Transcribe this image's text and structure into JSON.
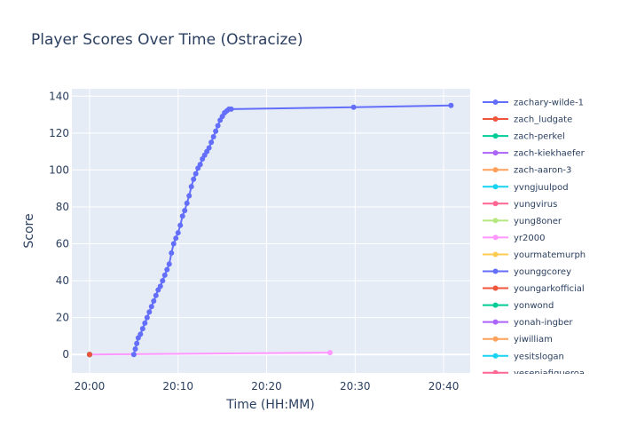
{
  "chart_data": {
    "type": "line",
    "title": "Player Scores Over Time (Ostracize)",
    "xlabel": "Time (HH:MM)",
    "ylabel": "Score",
    "xlim": [
      "19:58",
      "20:43"
    ],
    "ylim": [
      -10,
      144
    ],
    "x_ticks": [
      "20:00",
      "20:10",
      "20:20",
      "20:30",
      "20:40"
    ],
    "y_ticks": [
      0,
      20,
      40,
      60,
      80,
      100,
      120,
      140
    ],
    "grid": true,
    "legend_position": "right",
    "series": [
      {
        "name": "zachary-wilde-1",
        "color": "#636efa",
        "x": [
          "20:05:00",
          "20:05:10",
          "20:05:20",
          "20:05:30",
          "20:05:45",
          "20:06:00",
          "20:06:15",
          "20:06:30",
          "20:06:45",
          "20:07:00",
          "20:07:15",
          "20:07:30",
          "20:07:45",
          "20:08:00",
          "20:08:15",
          "20:08:30",
          "20:08:45",
          "20:09:00",
          "20:09:15",
          "20:09:30",
          "20:09:45",
          "20:10:00",
          "20:10:15",
          "20:10:30",
          "20:10:45",
          "20:11:00",
          "20:11:15",
          "20:11:30",
          "20:11:45",
          "20:12:00",
          "20:12:15",
          "20:12:30",
          "20:12:45",
          "20:13:00",
          "20:13:15",
          "20:13:30",
          "20:13:45",
          "20:14:00",
          "20:14:15",
          "20:14:30",
          "20:14:45",
          "20:15:00",
          "20:15:15",
          "20:15:30",
          "20:15:45",
          "20:16:00",
          "20:29:50",
          "20:40:50"
        ],
        "y": [
          0,
          3,
          6,
          9,
          11,
          14,
          17,
          20,
          23,
          26,
          29,
          32,
          35,
          37,
          40,
          43,
          46,
          49,
          55,
          60,
          63,
          66,
          70,
          75,
          78,
          82,
          86,
          91,
          95,
          98,
          101,
          103,
          106,
          108,
          110,
          112,
          115,
          118,
          121,
          124,
          127,
          129,
          131,
          132,
          133,
          133,
          134,
          135
        ]
      },
      {
        "name": "zach_ludgate",
        "color": "#ef553b",
        "x": [
          "20:00:00"
        ],
        "y": [
          0
        ]
      },
      {
        "name": "zach-perkel",
        "color": "#00cc96",
        "x": [
          "20:00:00"
        ],
        "y": [
          0
        ]
      },
      {
        "name": "zach-kiekhaefer",
        "color": "#ab63fa",
        "x": [
          "20:00:00"
        ],
        "y": [
          0
        ]
      },
      {
        "name": "zach-aaron-3",
        "color": "#ffa15a",
        "x": [
          "20:00:00"
        ],
        "y": [
          0
        ]
      },
      {
        "name": "yvngjuulpod",
        "color": "#19d3f3",
        "x": [
          "20:00:00"
        ],
        "y": [
          0
        ]
      },
      {
        "name": "yungvirus",
        "color": "#ff6692",
        "x": [
          "20:00:00"
        ],
        "y": [
          0
        ]
      },
      {
        "name": "yung8oner",
        "color": "#b6e880",
        "x": [
          "20:00:00"
        ],
        "y": [
          0
        ]
      },
      {
        "name": "yr2000",
        "color": "#ff97ff",
        "x": [
          "20:00:00",
          "20:27:10"
        ],
        "y": [
          0,
          1
        ]
      },
      {
        "name": "yourmatemurph",
        "color": "#fecb52",
        "x": [
          "20:00:00"
        ],
        "y": [
          0
        ]
      },
      {
        "name": "younggcorey",
        "color": "#636efa",
        "x": [
          "20:00:00"
        ],
        "y": [
          0
        ]
      },
      {
        "name": "youngarkofficial",
        "color": "#ef553b",
        "x": [
          "20:00:00"
        ],
        "y": [
          0
        ]
      },
      {
        "name": "yonwond",
        "color": "#00cc96",
        "x": [
          "20:00:00"
        ],
        "y": [
          0
        ]
      },
      {
        "name": "yonah-ingber",
        "color": "#ab63fa",
        "x": [
          "20:00:00"
        ],
        "y": [
          0
        ]
      },
      {
        "name": "yiwilliam",
        "color": "#ffa15a",
        "x": [
          "20:00:00"
        ],
        "y": [
          0
        ]
      },
      {
        "name": "yesitslogan",
        "color": "#19d3f3",
        "x": [
          "20:00:00"
        ],
        "y": [
          0
        ]
      },
      {
        "name": "yeseniafigueroa",
        "color": "#ff6692",
        "x": [
          "20:00:00"
        ],
        "y": [
          0
        ]
      }
    ]
  }
}
